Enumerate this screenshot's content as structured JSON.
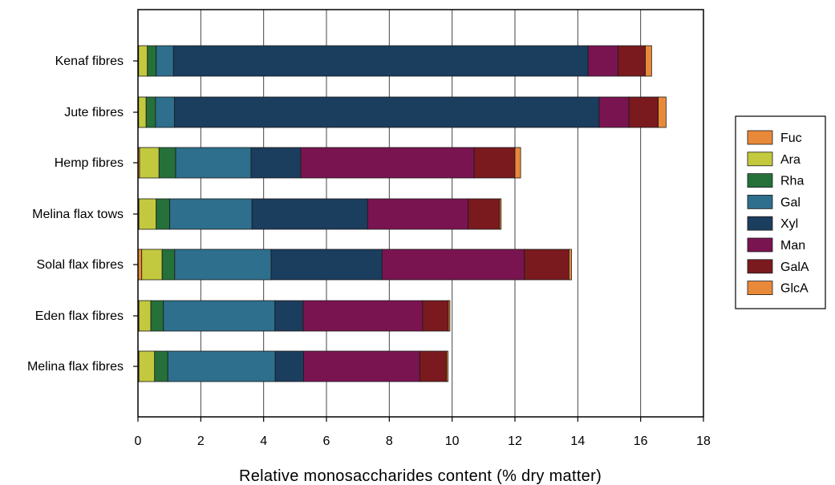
{
  "chart_data": {
    "type": "bar",
    "orientation": "horizontal",
    "stacked": true,
    "categories": [
      "Kenaf fibres",
      "Jute fibres",
      "Hemp fibres",
      "Melina flax tows",
      "Solal flax fibres",
      "Eden flax fibres",
      "Melina flax fibres"
    ],
    "series": [
      {
        "name": "Fuc",
        "color": "#E8893A",
        "values": [
          0.02,
          0.02,
          0.05,
          0.03,
          0.12,
          0.03,
          0.03
        ]
      },
      {
        "name": "Ara",
        "color": "#C3C93E",
        "values": [
          0.28,
          0.24,
          0.62,
          0.55,
          0.65,
          0.38,
          0.5
        ]
      },
      {
        "name": "Rha",
        "color": "#26703A",
        "values": [
          0.28,
          0.3,
          0.53,
          0.43,
          0.4,
          0.4,
          0.42
        ]
      },
      {
        "name": "Gal",
        "color": "#2D6F8C",
        "values": [
          0.55,
          0.6,
          2.4,
          2.62,
          3.07,
          3.55,
          3.42
        ]
      },
      {
        "name": "Xyl",
        "color": "#1B3D5E",
        "values": [
          13.2,
          13.52,
          1.58,
          3.68,
          3.53,
          0.9,
          0.9
        ]
      },
      {
        "name": "Man",
        "color": "#7A1450",
        "values": [
          0.95,
          0.95,
          5.52,
          3.2,
          4.53,
          3.8,
          3.7
        ]
      },
      {
        "name": "GalA",
        "color": "#7A1A1E",
        "values": [
          0.87,
          0.93,
          1.3,
          1.0,
          1.42,
          0.82,
          0.85
        ]
      },
      {
        "name": "GlcA",
        "color": "#E8893A",
        "values": [
          0.2,
          0.25,
          0.18,
          0.05,
          0.08,
          0.05,
          0.05
        ]
      }
    ],
    "xlabel": "Relative monosaccharides content (% dry matter)",
    "ylabel": "",
    "xlim": [
      0,
      18
    ],
    "xticks": [
      0,
      2,
      4,
      6,
      8,
      10,
      12,
      14,
      16,
      18
    ],
    "grid": "vertical",
    "legend_position": "right"
  }
}
